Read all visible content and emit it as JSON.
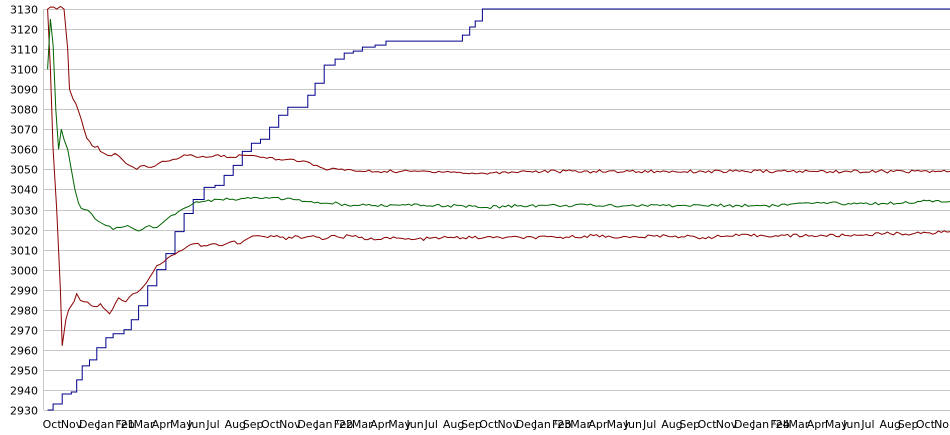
{
  "chart_data": {
    "type": "line",
    "title": "",
    "xlabel": "",
    "ylabel": "",
    "grid": true,
    "legend": "none",
    "ylim": [
      2930,
      3130
    ],
    "y_ticks": [
      2930,
      2940,
      2950,
      2960,
      2970,
      2980,
      2990,
      3000,
      3010,
      3020,
      3030,
      3040,
      3050,
      3060,
      3070,
      3080,
      3090,
      3100,
      3110,
      3120,
      3130
    ],
    "x_ticks": [
      "Oct",
      "Nov",
      "Dec",
      "Jan '21",
      "Feb",
      "Mar",
      "Apr",
      "May",
      "Jun",
      "Jul",
      "Aug",
      "Sep",
      "Oct",
      "Nov",
      "Dec",
      "Jan '22",
      "Feb",
      "Mar",
      "Apr",
      "May",
      "Jun",
      "Jul",
      "Aug",
      "Sep",
      "Oct",
      "Nov",
      "Dec",
      "Jan '23",
      "Feb",
      "Mar",
      "Apr",
      "May",
      "Jun",
      "Jul",
      "Aug",
      "Sep",
      "Oct",
      "Nov",
      "Dec",
      "Jan '24",
      "Feb",
      "Mar",
      "Apr",
      "May",
      "Jun",
      "Jul",
      "Aug",
      "Sep",
      "Oct",
      "No"
    ],
    "x_tick_positions": [
      0,
      1,
      2,
      3,
      4,
      5,
      6,
      7,
      8,
      9,
      10,
      11,
      12,
      13,
      14,
      15,
      16,
      17,
      18,
      19,
      20,
      21,
      22,
      23,
      24,
      25,
      26,
      27,
      28,
      29,
      30,
      31,
      32,
      33,
      34,
      35,
      36,
      37,
      38,
      39,
      40,
      41,
      42,
      43,
      44,
      45,
      46,
      47,
      48,
      49
    ],
    "xlim": [
      -0.2,
      49.6
    ],
    "series": [
      {
        "color": "#00008b",
        "points": [
          [
            0,
            2930
          ],
          [
            0.3,
            2933
          ],
          [
            0.8,
            2938
          ],
          [
            1.3,
            2939
          ],
          [
            1.6,
            2945
          ],
          [
            1.9,
            2952
          ],
          [
            2.3,
            2955
          ],
          [
            2.7,
            2961
          ],
          [
            3.2,
            2966
          ],
          [
            3.6,
            2968
          ],
          [
            4.2,
            2970
          ],
          [
            4.6,
            2975
          ],
          [
            5.0,
            2982
          ],
          [
            5.5,
            2992
          ],
          [
            6.0,
            3000
          ],
          [
            6.5,
            3008
          ],
          [
            7.0,
            3019
          ],
          [
            7.5,
            3028
          ],
          [
            8.0,
            3035
          ],
          [
            8.6,
            3041
          ],
          [
            9.2,
            3042
          ],
          [
            9.7,
            3047
          ],
          [
            10.2,
            3052
          ],
          [
            10.7,
            3059
          ],
          [
            11.2,
            3063
          ],
          [
            11.7,
            3065
          ],
          [
            12.2,
            3071
          ],
          [
            12.7,
            3077
          ],
          [
            13.2,
            3081
          ],
          [
            13.8,
            3081
          ],
          [
            14.3,
            3087
          ],
          [
            14.7,
            3093
          ],
          [
            15.2,
            3102
          ],
          [
            15.8,
            3105
          ],
          [
            16.3,
            3108
          ],
          [
            16.8,
            3109
          ],
          [
            17.3,
            3111
          ],
          [
            18.0,
            3112
          ],
          [
            18.6,
            3114
          ],
          [
            19.5,
            3114
          ],
          [
            20.5,
            3114
          ],
          [
            21.5,
            3114
          ],
          [
            22.4,
            3114
          ],
          [
            22.8,
            3117
          ],
          [
            23.2,
            3121
          ],
          [
            23.5,
            3124
          ],
          [
            23.9,
            3130
          ],
          [
            30.0,
            3130
          ],
          [
            40.0,
            3130
          ],
          [
            49.6,
            3130
          ]
        ]
      },
      {
        "color": "#8b0000",
        "points": [
          [
            0,
            3130
          ],
          [
            0.15,
            3100
          ],
          [
            0.3,
            3060
          ],
          [
            0.5,
            3030
          ],
          [
            0.7,
            2990
          ],
          [
            0.8,
            2962
          ],
          [
            1.0,
            2975
          ],
          [
            1.3,
            2982
          ],
          [
            1.6,
            2988
          ],
          [
            2.0,
            2984
          ],
          [
            2.4,
            2982
          ],
          [
            2.9,
            2983
          ],
          [
            3.4,
            2978
          ],
          [
            3.9,
            2986
          ],
          [
            4.3,
            2984
          ],
          [
            4.7,
            2988
          ],
          [
            5.1,
            2990
          ],
          [
            5.6,
            2996
          ],
          [
            6.0,
            3002
          ],
          [
            6.4,
            3004
          ],
          [
            6.8,
            3007
          ],
          [
            7.2,
            3009
          ],
          [
            7.6,
            3011
          ],
          [
            8.1,
            3013
          ],
          [
            8.6,
            3012
          ],
          [
            9.1,
            3013
          ],
          [
            9.6,
            3012
          ],
          [
            10.1,
            3014
          ],
          [
            10.6,
            3013
          ],
          [
            11.1,
            3016
          ],
          [
            11.6,
            3017
          ],
          [
            12.1,
            3016
          ],
          [
            12.6,
            3017
          ],
          [
            13.1,
            3015
          ],
          [
            13.6,
            3017
          ],
          [
            14.1,
            3016
          ],
          [
            14.6,
            3017
          ],
          [
            15.1,
            3015
          ],
          [
            15.6,
            3017
          ],
          [
            16.1,
            3016
          ],
          [
            16.6,
            3017
          ],
          [
            17.1,
            3016
          ],
          [
            17.6,
            3015
          ],
          [
            18.5,
            3016
          ],
          [
            20.0,
            3015
          ],
          [
            22.0,
            3016
          ],
          [
            24.0,
            3016
          ],
          [
            26.0,
            3016
          ],
          [
            28.0,
            3016
          ],
          [
            30.0,
            3017
          ],
          [
            32.0,
            3016
          ],
          [
            34.0,
            3017
          ],
          [
            36.0,
            3016
          ],
          [
            38.0,
            3017
          ],
          [
            40.0,
            3017
          ],
          [
            42.0,
            3017
          ],
          [
            44.0,
            3017
          ],
          [
            46.0,
            3018
          ],
          [
            48.0,
            3018
          ],
          [
            49.6,
            3019
          ]
        ]
      },
      {
        "color": "#8b0000",
        "points": [
          [
            0,
            3130
          ],
          [
            0.5,
            3130
          ],
          [
            0.9,
            3130
          ],
          [
            1.1,
            3110
          ],
          [
            1.2,
            3090
          ],
          [
            1.4,
            3085
          ],
          [
            1.7,
            3079
          ],
          [
            2.0,
            3070
          ],
          [
            2.3,
            3064
          ],
          [
            2.6,
            3061
          ],
          [
            2.9,
            3059
          ],
          [
            3.3,
            3057
          ],
          [
            3.7,
            3058
          ],
          [
            4.1,
            3055
          ],
          [
            4.5,
            3052
          ],
          [
            4.9,
            3050
          ],
          [
            5.3,
            3052
          ],
          [
            5.7,
            3051
          ],
          [
            6.1,
            3053
          ],
          [
            6.5,
            3054
          ],
          [
            6.9,
            3055
          ],
          [
            7.3,
            3056
          ],
          [
            7.7,
            3057
          ],
          [
            8.2,
            3056
          ],
          [
            8.7,
            3056
          ],
          [
            9.2,
            3057
          ],
          [
            9.7,
            3057
          ],
          [
            10.2,
            3056
          ],
          [
            10.7,
            3057
          ],
          [
            11.2,
            3057
          ],
          [
            11.7,
            3056
          ],
          [
            12.2,
            3056
          ],
          [
            12.7,
            3055
          ],
          [
            13.2,
            3055
          ],
          [
            13.7,
            3054
          ],
          [
            14.2,
            3054
          ],
          [
            14.6,
            3052
          ],
          [
            15.0,
            3051
          ],
          [
            15.5,
            3050
          ],
          [
            16.0,
            3050
          ],
          [
            16.5,
            3050
          ],
          [
            17.0,
            3049
          ],
          [
            17.5,
            3049
          ],
          [
            18.5,
            3049
          ],
          [
            20.0,
            3049
          ],
          [
            22.0,
            3049
          ],
          [
            23.0,
            3048
          ],
          [
            24.0,
            3048
          ],
          [
            26.0,
            3049
          ],
          [
            28.0,
            3049
          ],
          [
            30.0,
            3049
          ],
          [
            32.0,
            3049
          ],
          [
            34.0,
            3049
          ],
          [
            36.0,
            3049
          ],
          [
            38.0,
            3049
          ],
          [
            40.0,
            3049
          ],
          [
            42.0,
            3049
          ],
          [
            44.0,
            3049
          ],
          [
            46.0,
            3049
          ],
          [
            48.0,
            3049
          ],
          [
            49.6,
            3049
          ]
        ]
      },
      {
        "color": "#006400",
        "points": [
          [
            0,
            3100
          ],
          [
            0.15,
            3125
          ],
          [
            0.3,
            3112
          ],
          [
            0.45,
            3080
          ],
          [
            0.6,
            3060
          ],
          [
            0.75,
            3070
          ],
          [
            0.9,
            3065
          ],
          [
            1.1,
            3060
          ],
          [
            1.3,
            3050
          ],
          [
            1.5,
            3040
          ],
          [
            1.7,
            3033
          ],
          [
            2.0,
            3030
          ],
          [
            2.4,
            3028
          ],
          [
            2.8,
            3024
          ],
          [
            3.2,
            3022
          ],
          [
            3.6,
            3020
          ],
          [
            4.0,
            3021
          ],
          [
            4.4,
            3022
          ],
          [
            4.8,
            3020
          ],
          [
            5.2,
            3020
          ],
          [
            5.6,
            3022
          ],
          [
            6.0,
            3021
          ],
          [
            6.4,
            3024
          ],
          [
            6.8,
            3027
          ],
          [
            7.2,
            3029
          ],
          [
            7.6,
            3031
          ],
          [
            8.0,
            3033
          ],
          [
            8.5,
            3034
          ],
          [
            9.0,
            3034
          ],
          [
            9.5,
            3035
          ],
          [
            10.0,
            3035
          ],
          [
            10.5,
            3035
          ],
          [
            11.0,
            3036
          ],
          [
            11.5,
            3036
          ],
          [
            12.0,
            3036
          ],
          [
            12.5,
            3036
          ],
          [
            13.0,
            3035
          ],
          [
            13.5,
            3035
          ],
          [
            14.0,
            3034
          ],
          [
            14.5,
            3034
          ],
          [
            15.0,
            3033
          ],
          [
            15.5,
            3033
          ],
          [
            16.0,
            3033
          ],
          [
            16.5,
            3032
          ],
          [
            17.0,
            3032
          ],
          [
            18.0,
            3032
          ],
          [
            20.0,
            3032
          ],
          [
            22.0,
            3032
          ],
          [
            24.0,
            3031
          ],
          [
            26.0,
            3032
          ],
          [
            28.0,
            3032
          ],
          [
            30.0,
            3032
          ],
          [
            32.0,
            3032
          ],
          [
            34.0,
            3032
          ],
          [
            36.0,
            3032
          ],
          [
            38.0,
            3032
          ],
          [
            40.0,
            3032
          ],
          [
            42.0,
            3033
          ],
          [
            44.0,
            3033
          ],
          [
            46.0,
            3033
          ],
          [
            48.0,
            3034
          ],
          [
            49.6,
            3034
          ]
        ]
      }
    ]
  }
}
